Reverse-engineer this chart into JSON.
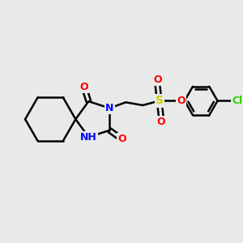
{
  "bg_color": "#e8eaea",
  "bond_color": "#000000",
  "bond_width": 1.8,
  "N_color": "#0000ff",
  "O_color": "#ff0000",
  "S_color": "#cccc00",
  "Cl_color": "#33cc00",
  "figsize": [
    3.0,
    3.0
  ],
  "dpi": 100,
  "xlim": [
    0,
    10
  ],
  "ylim": [
    0,
    10
  ]
}
